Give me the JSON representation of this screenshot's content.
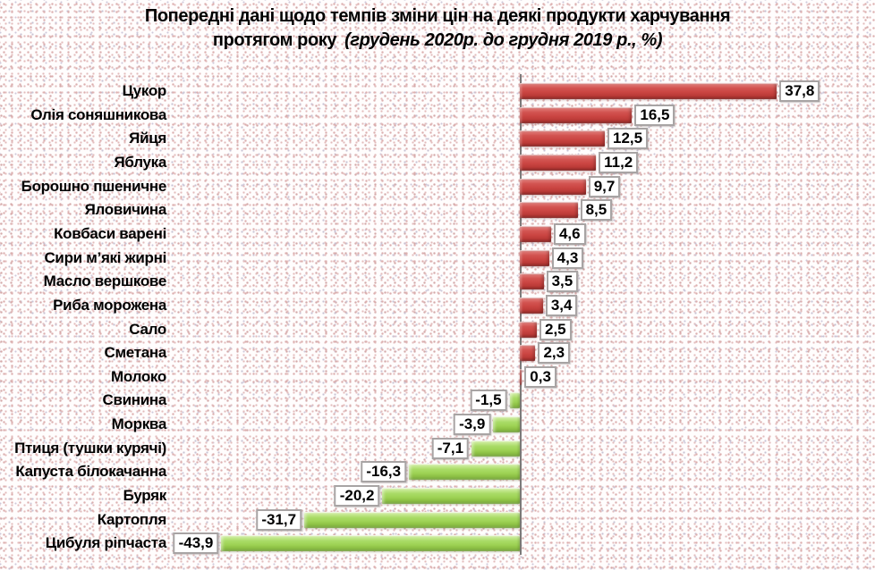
{
  "title": {
    "line1": "Попередні дані щодо  темпів зміни цін на деякі продукти харчування",
    "line2_regular": "протягом року",
    "line2_italic": "(грудень 2020р. до грудня 2019 р., %)"
  },
  "chart_data": {
    "type": "bar",
    "orientation": "horizontal",
    "title": "Попередні дані щодо темпів зміни цін на деякі продукти харчування протягом року (грудень 2020р. до грудня 2019 р., %)",
    "xlabel": "",
    "ylabel": "",
    "categories": [
      "Цукор",
      "Олія соняшникова",
      "Яйця",
      "Яблука",
      "Борошно пшеничне",
      "Яловичина",
      "Ковбаси варені",
      "Сири м’які жирні",
      "Масло вершкове",
      "Риба морожена",
      "Сало",
      "Сметана",
      "Молоко",
      "Свинина",
      "Морква",
      "Птиця (тушки курячі)",
      "Капуста білокачанна",
      "Буряк",
      "Картопля",
      "Цибуля ріпчаста"
    ],
    "values": [
      37.8,
      16.5,
      12.5,
      11.2,
      9.7,
      8.5,
      4.6,
      4.3,
      3.5,
      3.4,
      2.5,
      2.3,
      0.3,
      -1.5,
      -3.9,
      -7.1,
      -16.3,
      -20.2,
      -31.7,
      -43.9
    ],
    "value_labels": [
      "37,8",
      "16,5",
      "12,5",
      "11,2",
      "9,7",
      "8,5",
      "4,6",
      "4,3",
      "3,5",
      "3,4",
      "2,5",
      "2,3",
      "0,3",
      "-1,5",
      "-3,9",
      "-7,1",
      "-16,3",
      "-20,2",
      "-31,7",
      "-43,9"
    ],
    "unit": "%",
    "xlim": [
      -50,
      45
    ],
    "grid": false,
    "legend": "none",
    "x_axis_labels_visible": false,
    "data_labels": "boxed, at bar ends",
    "positive_color": "#cb4643",
    "negative_color": "#9dd254",
    "label_box_border_color": "#a8a4a4",
    "axis_line_color": "#7d7b7b",
    "text_color": "#000000"
  }
}
